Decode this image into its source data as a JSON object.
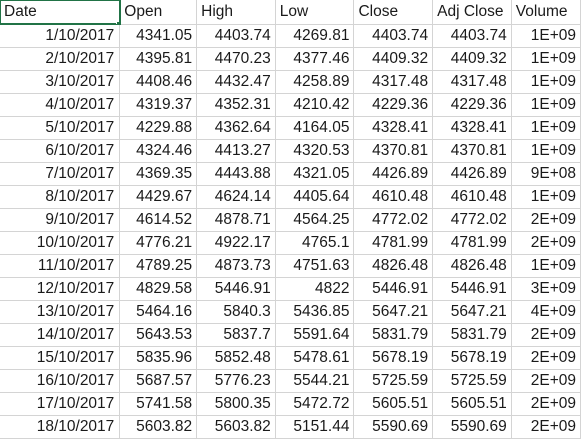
{
  "columns": [
    "Date",
    "Open",
    "High",
    "Low",
    "Close",
    "Adj Close",
    "Volume"
  ],
  "rows": [
    [
      "1/10/2017",
      "4341.05",
      "4403.74",
      "4269.81",
      "4403.74",
      "4403.74",
      "1E+09"
    ],
    [
      "2/10/2017",
      "4395.81",
      "4470.23",
      "4377.46",
      "4409.32",
      "4409.32",
      "1E+09"
    ],
    [
      "3/10/2017",
      "4408.46",
      "4432.47",
      "4258.89",
      "4317.48",
      "4317.48",
      "1E+09"
    ],
    [
      "4/10/2017",
      "4319.37",
      "4352.31",
      "4210.42",
      "4229.36",
      "4229.36",
      "1E+09"
    ],
    [
      "5/10/2017",
      "4229.88",
      "4362.64",
      "4164.05",
      "4328.41",
      "4328.41",
      "1E+09"
    ],
    [
      "6/10/2017",
      "4324.46",
      "4413.27",
      "4320.53",
      "4370.81",
      "4370.81",
      "1E+09"
    ],
    [
      "7/10/2017",
      "4369.35",
      "4443.88",
      "4321.05",
      "4426.89",
      "4426.89",
      "9E+08"
    ],
    [
      "8/10/2017",
      "4429.67",
      "4624.14",
      "4405.64",
      "4610.48",
      "4610.48",
      "1E+09"
    ],
    [
      "9/10/2017",
      "4614.52",
      "4878.71",
      "4564.25",
      "4772.02",
      "4772.02",
      "2E+09"
    ],
    [
      "10/10/2017",
      "4776.21",
      "4922.17",
      "4765.1",
      "4781.99",
      "4781.99",
      "2E+09"
    ],
    [
      "11/10/2017",
      "4789.25",
      "4873.73",
      "4751.63",
      "4826.48",
      "4826.48",
      "1E+09"
    ],
    [
      "12/10/2017",
      "4829.58",
      "5446.91",
      "4822",
      "5446.91",
      "5446.91",
      "3E+09"
    ],
    [
      "13/10/2017",
      "5464.16",
      "5840.3",
      "5436.85",
      "5647.21",
      "5647.21",
      "4E+09"
    ],
    [
      "14/10/2017",
      "5643.53",
      "5837.7",
      "5591.64",
      "5831.79",
      "5831.79",
      "2E+09"
    ],
    [
      "15/10/2017",
      "5835.96",
      "5852.48",
      "5478.61",
      "5678.19",
      "5678.19",
      "2E+09"
    ],
    [
      "16/10/2017",
      "5687.57",
      "5776.23",
      "5544.21",
      "5725.59",
      "5725.59",
      "2E+09"
    ],
    [
      "17/10/2017",
      "5741.58",
      "5800.35",
      "5472.72",
      "5605.51",
      "5605.51",
      "2E+09"
    ],
    [
      "18/10/2017",
      "5603.82",
      "5603.82",
      "5151.44",
      "5590.69",
      "5590.69",
      "2E+09"
    ]
  ],
  "colors": {
    "grid": "#d4d4d4",
    "selection": "#217346",
    "text": "#1a1a1a"
  }
}
